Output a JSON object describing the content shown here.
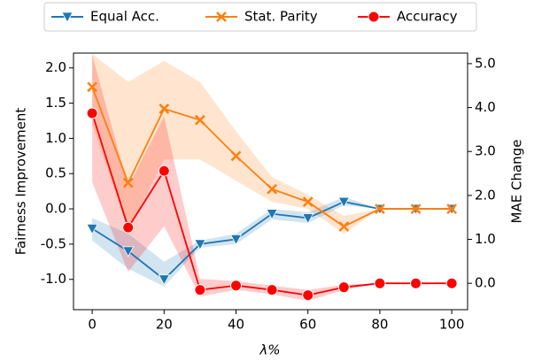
{
  "chart_data": {
    "type": "line",
    "x": [
      0,
      10,
      20,
      30,
      40,
      50,
      60,
      70,
      80,
      90,
      100
    ],
    "xlabel": "λ%",
    "ylabel": "Fairness Improvement",
    "y2label": "MAE Change",
    "xlim": [
      -5.2,
      104.4
    ],
    "xticks": [
      0,
      20,
      40,
      60,
      80,
      100
    ],
    "ylim": [
      -1.43,
      2.21
    ],
    "yticks": [
      {
        "value": -1.0,
        "label": "-1.0"
      },
      {
        "value": -0.5,
        "label": "-0.5"
      },
      {
        "value": 0.0,
        "label": "0.0"
      },
      {
        "value": 0.5,
        "label": "0.5"
      },
      {
        "value": 1.0,
        "label": "1.0"
      },
      {
        "value": 1.5,
        "label": "1.5"
      },
      {
        "value": 2.0,
        "label": "2.0"
      }
    ],
    "y2lim": [
      -0.6,
      5.24
    ],
    "y2ticks": [
      {
        "value": 0.0,
        "label": "0.0"
      },
      {
        "value": 1.0,
        "label": "1.0"
      },
      {
        "value": 2.0,
        "label": "2.0"
      },
      {
        "value": 3.0,
        "label": "3.0"
      },
      {
        "value": 4.0,
        "label": "4.0"
      },
      {
        "value": 5.0,
        "label": "5.0"
      }
    ],
    "legend": "top-outside",
    "series": [
      {
        "name": "Equal Acc.",
        "color": "#1f77b4",
        "marker": "triangle-down",
        "axis": "y",
        "values": [
          -0.28,
          -0.6,
          -1.0,
          -0.5,
          -0.43,
          -0.07,
          -0.13,
          0.1,
          0.0,
          0.0,
          0.0
        ],
        "lower": [
          -0.45,
          -0.85,
          -1.1,
          -0.55,
          -0.5,
          -0.15,
          -0.2,
          0.05,
          0.0,
          0.0,
          0.0
        ],
        "upper": [
          -0.13,
          -0.35,
          -0.75,
          -0.45,
          -0.35,
          0.0,
          -0.05,
          0.17,
          0.0,
          0.0,
          0.0
        ]
      },
      {
        "name": "Stat. Parity",
        "color": "#ff7f0e",
        "marker": "x",
        "axis": "y",
        "values": [
          1.73,
          0.37,
          1.42,
          1.26,
          0.75,
          0.28,
          0.1,
          -0.25,
          0.0,
          0.0,
          0.0
        ],
        "lower": [
          1.2,
          -0.3,
          0.7,
          0.7,
          0.4,
          0.1,
          0.0,
          -0.35,
          0.0,
          0.0,
          0.0
        ],
        "upper": [
          2.2,
          1.8,
          2.1,
          1.8,
          1.1,
          0.45,
          0.2,
          -0.1,
          0.0,
          0.0,
          0.0
        ]
      },
      {
        "name": "Accuracy",
        "color": "#ff0000",
        "marker": "circle",
        "axis": "y2",
        "values": [
          3.87,
          1.27,
          2.56,
          -0.15,
          -0.05,
          -0.15,
          -0.27,
          -0.09,
          0.0,
          0.0,
          0.0
        ],
        "lower": [
          2.3,
          0.26,
          1.3,
          -0.3,
          -0.15,
          -0.25,
          -0.4,
          -0.15,
          0.0,
          0.0,
          0.0
        ],
        "upper": [
          5.2,
          2.2,
          3.8,
          0.1,
          0.05,
          -0.05,
          -0.15,
          -0.03,
          0.0,
          0.0,
          0.0
        ]
      }
    ]
  }
}
